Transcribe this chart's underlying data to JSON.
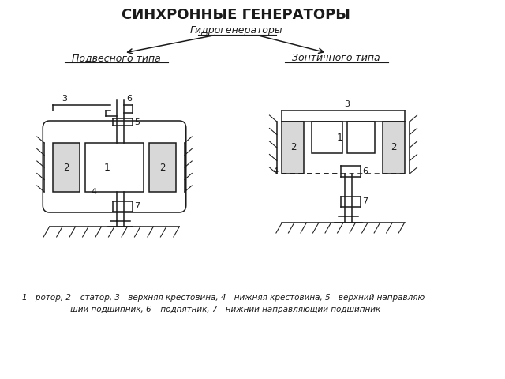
{
  "title": "СИНХРОННЫЕ ГЕНЕРАТОРЫ",
  "subtitle": "Гидрогенераторы",
  "label_left": "Подвесного типа",
  "label_right": "Зонтичного типа",
  "caption_line1": "1 - ротор, 2 – статор, 3 - верхняя крестовина, 4 - нижняя крестовина, 5 - верхний направляю-",
  "caption_line2": "щий подшипник, 6 – подпятник, 7 - нижний направляющий подшипник",
  "bg_color": "#ffffff",
  "line_color": "#1a1a1a",
  "lw": 1.1
}
